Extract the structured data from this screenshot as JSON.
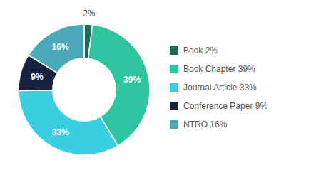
{
  "chart_data": {
    "type": "pie",
    "categories": [
      "Book 2%",
      "Book Chapter 39%",
      "Journal Article 33%",
      "Conference Paper 9%",
      "NTRO 16%"
    ],
    "values": [
      2,
      39,
      33,
      9,
      16
    ],
    "value_labels": [
      "2%",
      "39%",
      "33%",
      "9%",
      "16%"
    ],
    "colors": [
      "#1e6b5a",
      "#2ec4a0",
      "#3acfe0",
      "#172140",
      "#4aa8b8"
    ],
    "data_labels": true,
    "legend": "right"
  }
}
